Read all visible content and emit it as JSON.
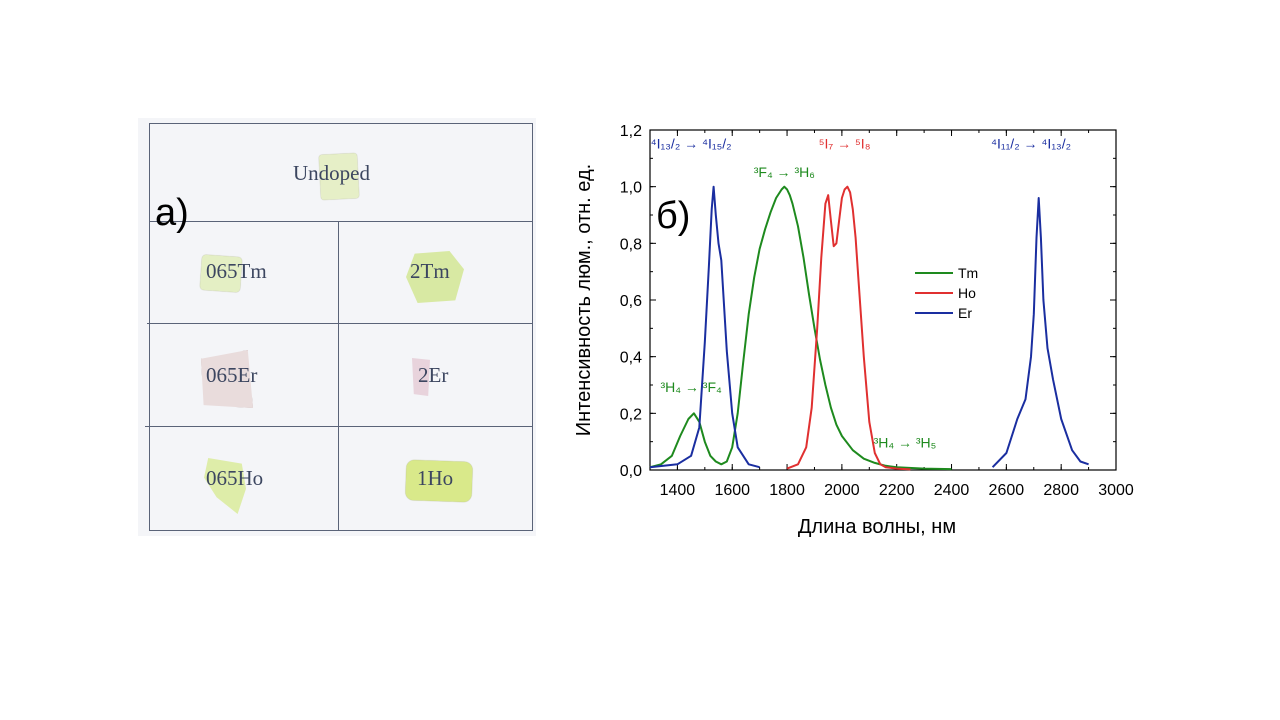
{
  "panel_a": {
    "label": "а)",
    "samples": [
      {
        "label": "Undoped",
        "color": "#e6efc7"
      },
      {
        "label": "065Tm",
        "color": "#e4efc4"
      },
      {
        "label": "2Tm",
        "color": "#d8e9a3"
      },
      {
        "label": "065Er",
        "color": "#e9dcdc"
      },
      {
        "label": "2Er",
        "color": "#e8d3dc"
      },
      {
        "label": "065Ho",
        "color": "#deeda9"
      },
      {
        "label": "1Ho",
        "color": "#d9e98a"
      }
    ]
  },
  "chart_data": {
    "type": "line",
    "panel_label": "б)",
    "xlabel": "Длина волны, нм",
    "ylabel": "Интенсивность люм., отн. ед.",
    "xlim": [
      1300,
      3000
    ],
    "ylim": [
      0,
      1.2
    ],
    "xticks": [
      "1400",
      "1600",
      "1800",
      "2000",
      "2200",
      "2400",
      "2600",
      "2800",
      "3000"
    ],
    "yticks": [
      "0,0",
      "0,2",
      "0,4",
      "0,6",
      "0,8",
      "1,0",
      "1,2"
    ],
    "legend_position": "right-center",
    "series": [
      {
        "name": "Tm",
        "color": "#1e8a1e",
        "x": [
          1300,
          1340,
          1380,
          1410,
          1440,
          1460,
          1480,
          1500,
          1520,
          1540,
          1560,
          1580,
          1600,
          1620,
          1640,
          1660,
          1680,
          1700,
          1720,
          1740,
          1760,
          1780,
          1790,
          1800,
          1810,
          1820,
          1840,
          1860,
          1880,
          1900,
          1920,
          1940,
          1960,
          1980,
          2000,
          2040,
          2080,
          2120,
          2160,
          2200,
          2300,
          2400
        ],
        "y": [
          0.01,
          0.02,
          0.05,
          0.12,
          0.18,
          0.2,
          0.17,
          0.1,
          0.05,
          0.03,
          0.02,
          0.03,
          0.08,
          0.2,
          0.38,
          0.55,
          0.68,
          0.78,
          0.85,
          0.91,
          0.96,
          0.99,
          1.0,
          0.99,
          0.97,
          0.94,
          0.86,
          0.75,
          0.62,
          0.5,
          0.39,
          0.3,
          0.22,
          0.16,
          0.12,
          0.07,
          0.04,
          0.025,
          0.015,
          0.01,
          0.005,
          0.003
        ]
      },
      {
        "name": "Ho",
        "color": "#e03030",
        "x": [
          1800,
          1840,
          1870,
          1890,
          1910,
          1925,
          1940,
          1950,
          1960,
          1970,
          1980,
          1990,
          2000,
          2010,
          2020,
          2030,
          2040,
          2050,
          2060,
          2080,
          2100,
          2120,
          2140,
          2160,
          2200,
          2250
        ],
        "y": [
          0.005,
          0.02,
          0.08,
          0.22,
          0.5,
          0.75,
          0.94,
          0.97,
          0.88,
          0.79,
          0.8,
          0.88,
          0.96,
          0.99,
          1.0,
          0.98,
          0.92,
          0.82,
          0.68,
          0.4,
          0.17,
          0.06,
          0.02,
          0.01,
          0.005,
          0.002
        ]
      },
      {
        "name": "Er",
        "color": "#1a2ea0",
        "x": [
          1300,
          1400,
          1450,
          1480,
          1500,
          1515,
          1525,
          1532,
          1540,
          1550,
          1560,
          1580,
          1600,
          1620,
          1660,
          1700,
          2550,
          2600,
          2640,
          2670,
          2690,
          2700,
          2710,
          2718,
          2726,
          2735,
          2750,
          2770,
          2800,
          2840,
          2870,
          2900
        ],
        "y": [
          0.01,
          0.02,
          0.05,
          0.15,
          0.45,
          0.72,
          0.92,
          1.0,
          0.9,
          0.8,
          0.74,
          0.42,
          0.2,
          0.08,
          0.02,
          0.01,
          0.01,
          0.06,
          0.18,
          0.25,
          0.4,
          0.55,
          0.82,
          0.96,
          0.82,
          0.6,
          0.43,
          0.32,
          0.18,
          0.07,
          0.03,
          0.02
        ]
      }
    ],
    "annotations": [
      {
        "text": "⁴I₁₃/₂ → ⁴I₁₅/₂",
        "color": "#1a2ea0",
        "x": 1450,
        "y": 1.135
      },
      {
        "text": "⁵I₇ → ⁵I₈",
        "color": "#e03030",
        "x": 2010,
        "y": 1.135
      },
      {
        "text": "⁴I₁₁/₂ → ⁴I₁₃/₂",
        "color": "#1a2ea0",
        "x": 2690,
        "y": 1.135
      },
      {
        "text": "³F₄ → ³H₆",
        "color": "#1e8a1e",
        "x": 1790,
        "y": 1.035
      },
      {
        "text": "³H₄ → ³F₄",
        "color": "#1e8a1e",
        "x": 1450,
        "y": 0.275
      },
      {
        "text": "³H₄ → ³H₅",
        "color": "#1e8a1e",
        "x": 2230,
        "y": 0.08
      }
    ]
  }
}
